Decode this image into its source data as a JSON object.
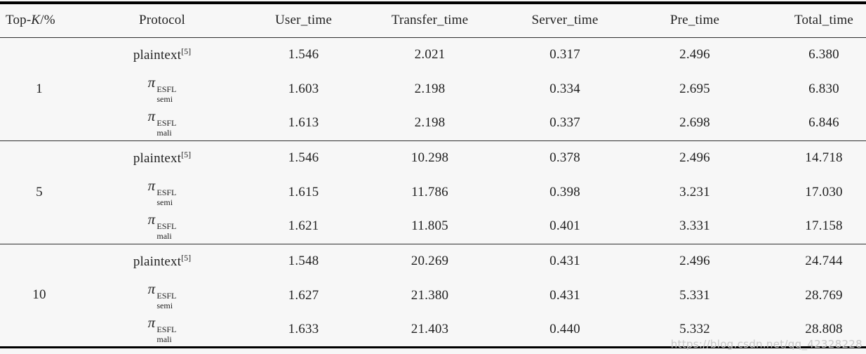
{
  "header": {
    "topk": {
      "prefix": "Top-",
      "k": "K",
      "suffix": "/%"
    },
    "columns": [
      "Protocol",
      "User_time",
      "Transfer_time",
      "Server_time",
      "Pre_time",
      "Total_time"
    ]
  },
  "groups": [
    {
      "topk": "1",
      "rows": [
        {
          "protocol": {
            "kind": "cite",
            "base": "plaintext",
            "sup": "[5]"
          },
          "values": [
            "1.546",
            "2.021",
            "0.317",
            "2.496",
            "6.380"
          ]
        },
        {
          "protocol": {
            "kind": "pi",
            "base": "π",
            "sup": "ESFL",
            "sub": "semi"
          },
          "values": [
            "1.603",
            "2.198",
            "0.334",
            "2.695",
            "6.830"
          ]
        },
        {
          "protocol": {
            "kind": "pi",
            "base": "π",
            "sup": "ESFL",
            "sub": "mali"
          },
          "values": [
            "1.613",
            "2.198",
            "0.337",
            "2.698",
            "6.846"
          ]
        }
      ]
    },
    {
      "topk": "5",
      "rows": [
        {
          "protocol": {
            "kind": "cite",
            "base": "plaintext",
            "sup": "[5]"
          },
          "values": [
            "1.546",
            "10.298",
            "0.378",
            "2.496",
            "14.718"
          ]
        },
        {
          "protocol": {
            "kind": "pi",
            "base": "π",
            "sup": "ESFL",
            "sub": "semi"
          },
          "values": [
            "1.615",
            "11.786",
            "0.398",
            "3.231",
            "17.030"
          ]
        },
        {
          "protocol": {
            "kind": "pi",
            "base": "π",
            "sup": "ESFL",
            "sub": "mali"
          },
          "values": [
            "1.621",
            "11.805",
            "0.401",
            "3.331",
            "17.158"
          ]
        }
      ]
    },
    {
      "topk": "10",
      "rows": [
        {
          "protocol": {
            "kind": "cite",
            "base": "plaintext",
            "sup": "[5]"
          },
          "values": [
            "1.548",
            "20.269",
            "0.431",
            "2.496",
            "24.744"
          ]
        },
        {
          "protocol": {
            "kind": "pi",
            "base": "π",
            "sup": "ESFL",
            "sub": "semi"
          },
          "values": [
            "1.627",
            "21.380",
            "0.431",
            "5.331",
            "28.769"
          ]
        },
        {
          "protocol": {
            "kind": "pi",
            "base": "π",
            "sup": "ESFL",
            "sub": "mali"
          },
          "values": [
            "1.633",
            "21.403",
            "0.440",
            "5.332",
            "28.808"
          ]
        }
      ]
    }
  ],
  "value_column_names": [
    "user-time",
    "transfer-time",
    "server-time",
    "pre-time",
    "total-time"
  ],
  "watermark": "https://blog.csdn.net/qq_42328228",
  "colors": {
    "background": "#f7f7f7",
    "text": "#1f1f1f",
    "thick_rule": "#000000",
    "thin_rule": "#2e2e2e",
    "watermark": "#c8c8c8"
  }
}
